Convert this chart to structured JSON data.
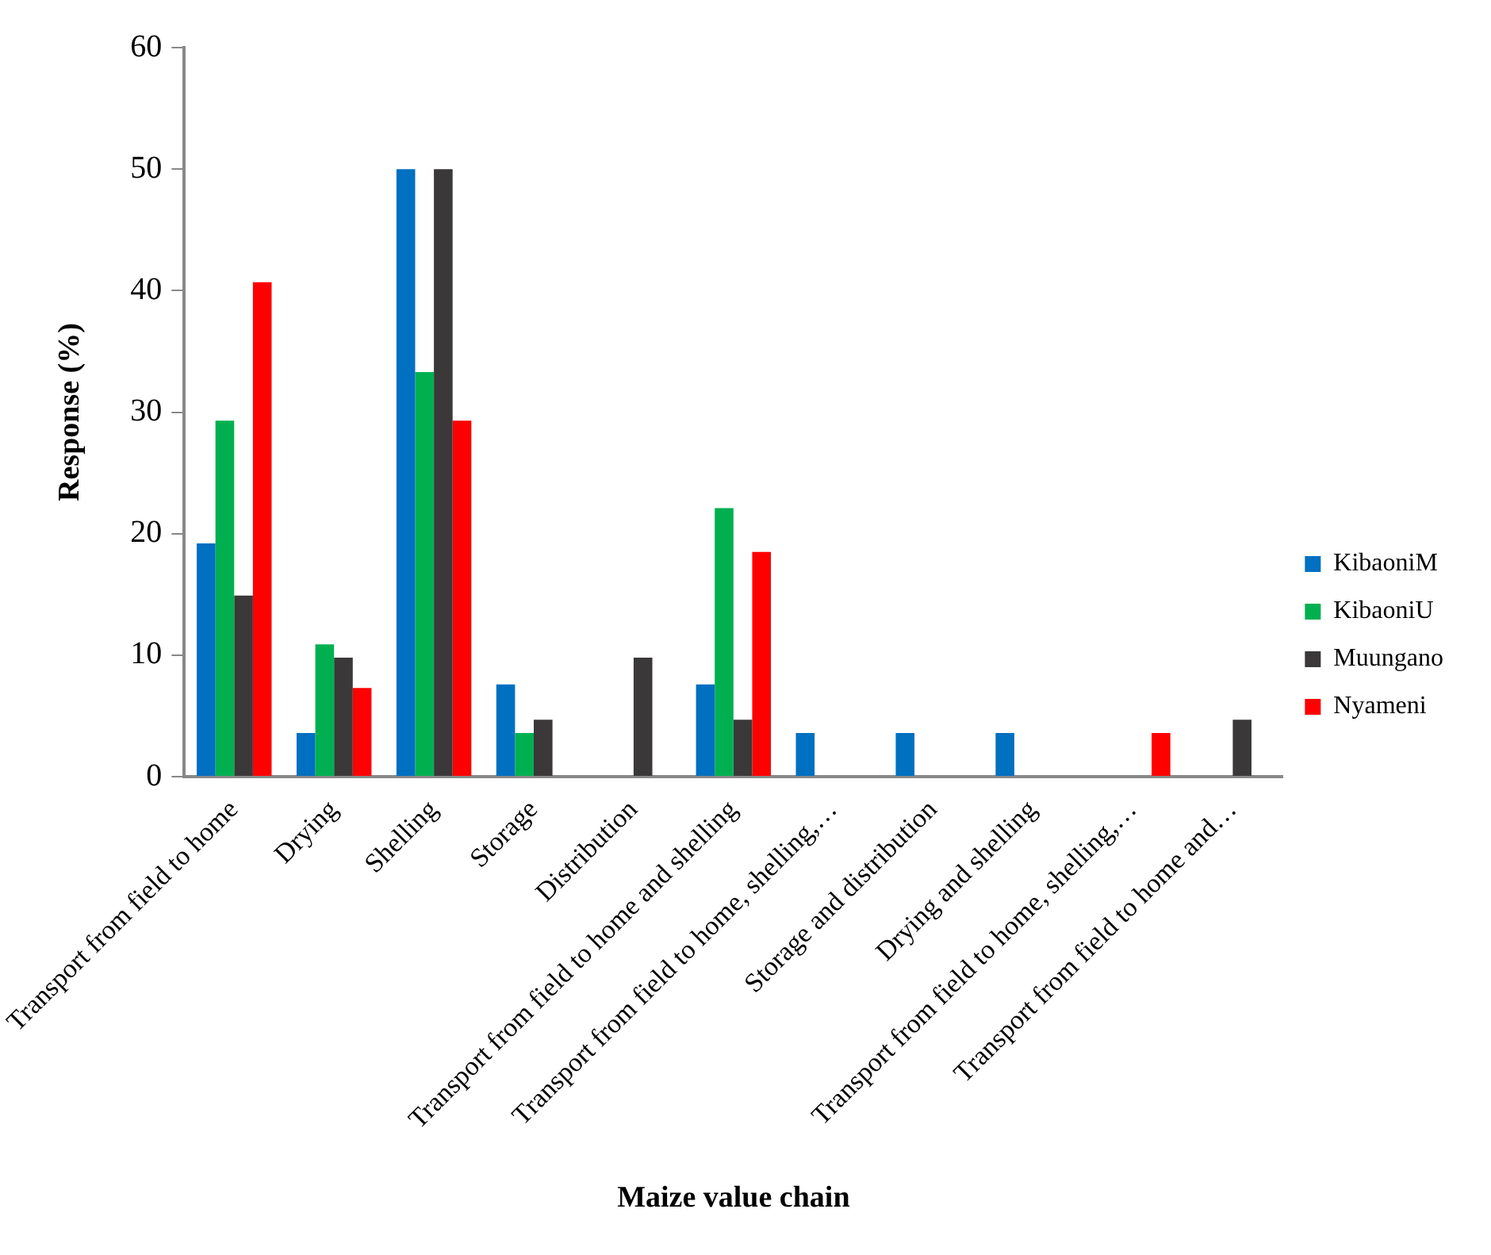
{
  "chart_data": {
    "type": "bar",
    "xlabel": "Maize value chain",
    "ylabel": "Response (%)",
    "categories": [
      "Transport from field to home",
      "Drying",
      "Shelling",
      "Storage",
      "Distribution",
      "Transport from field to home and shelling",
      "Transport from field to home, shelling,…",
      "Storage and distribution",
      "Drying and shelling",
      "Transport from field to home, shelling,…",
      "Transport from field to home and…"
    ],
    "series": [
      {
        "name": "KibaoniM",
        "color": "#0070c0",
        "values": [
          19.2,
          3.6,
          50,
          7.6,
          0,
          7.6,
          3.6,
          3.6,
          3.6,
          0,
          0
        ]
      },
      {
        "name": "KibaoniU",
        "color": "#00b050",
        "values": [
          29.3,
          10.9,
          33.3,
          3.6,
          0,
          22.1,
          0,
          0,
          0,
          0,
          0
        ]
      },
      {
        "name": "Muungano",
        "color": "#3a3838",
        "values": [
          14.9,
          9.8,
          50,
          4.7,
          9.8,
          4.7,
          0,
          0,
          0,
          0,
          4.7
        ]
      },
      {
        "name": "Nyameni",
        "color": "#ff0000",
        "values": [
          40.7,
          7.3,
          29.3,
          0,
          0,
          18.5,
          0,
          0,
          0,
          3.6,
          0
        ]
      }
    ],
    "ylim": [
      0,
      60
    ],
    "yticks": [
      0,
      10,
      20,
      30,
      40,
      50,
      60
    ],
    "grid": false,
    "legend": "right"
  }
}
